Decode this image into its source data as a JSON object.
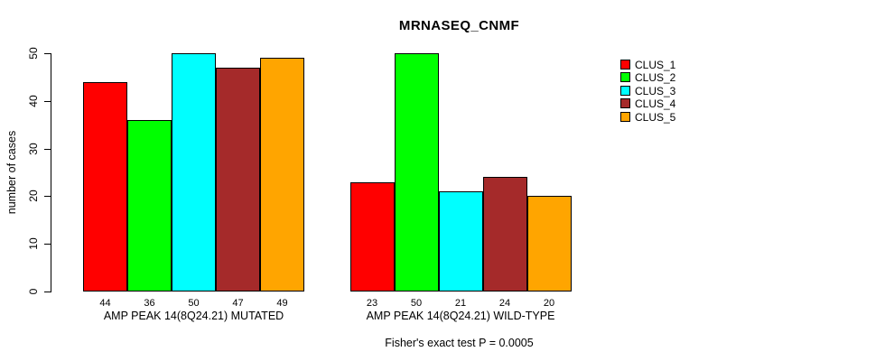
{
  "chart_data": {
    "type": "bar",
    "title": "MRNASEQ_CNMF",
    "ylabel": "number of cases",
    "xlabel": "",
    "ylim": [
      0,
      50
    ],
    "yticks": [
      0,
      10,
      20,
      30,
      40,
      50
    ],
    "grid": false,
    "bar_value_labels": true,
    "legend_position": "right-top",
    "categories": [
      "AMP PEAK 14(8Q24.21) MUTATED",
      "AMP PEAK 14(8Q24.21) WILD-TYPE"
    ],
    "series": [
      {
        "name": "CLUS_1",
        "color": "#FF0000",
        "values": [
          44,
          23
        ]
      },
      {
        "name": "CLUS_2",
        "color": "#00FF00",
        "values": [
          36,
          50
        ]
      },
      {
        "name": "CLUS_3",
        "color": "#00FFFF",
        "values": [
          50,
          21
        ]
      },
      {
        "name": "CLUS_4",
        "color": "#A52A2A",
        "values": [
          47,
          24
        ]
      },
      {
        "name": "CLUS_5",
        "color": "#FFA500",
        "values": [
          49,
          20
        ]
      }
    ],
    "annotation": "Fisher's exact test P = 0.0005"
  }
}
